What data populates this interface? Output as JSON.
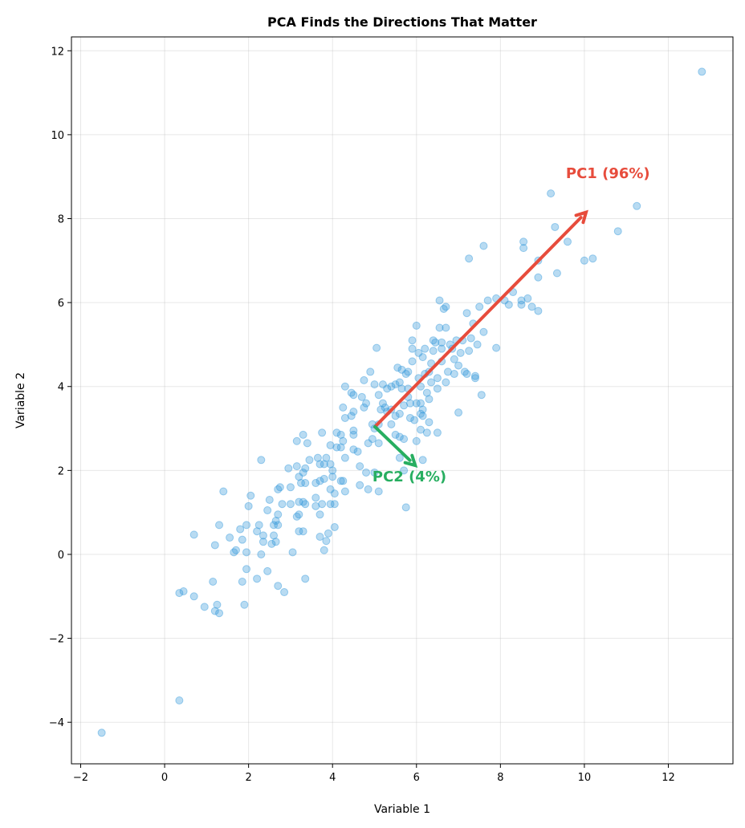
{
  "chart_data": {
    "type": "scatter",
    "title": "PCA Finds the Directions That Matter",
    "xlabel": "Variable 1",
    "ylabel": "Variable 2",
    "xlim": [
      -2.22,
      13.54
    ],
    "ylim": [
      -4.99,
      12.33
    ],
    "xticks": [
      -2,
      0,
      2,
      4,
      6,
      8,
      10,
      12
    ],
    "yticks": [
      -4,
      -2,
      0,
      2,
      4,
      6,
      8,
      10,
      12
    ],
    "grid": true,
    "colors": {
      "points": "#3498db",
      "pc1": "#e74c3c",
      "pc2": "#27ae60"
    },
    "points": [
      [
        -1.5,
        -4.25
      ],
      [
        0.35,
        -3.48
      ],
      [
        12.8,
        11.5
      ],
      [
        9.2,
        8.6
      ],
      [
        11.25,
        8.3
      ],
      [
        10.8,
        7.7
      ],
      [
        10.2,
        7.05
      ],
      [
        10,
        7.0
      ],
      [
        9.6,
        7.45
      ],
      [
        9.3,
        7.8
      ],
      [
        9.35,
        6.7
      ],
      [
        8.9,
        7.0
      ],
      [
        8.9,
        6.6
      ],
      [
        8.9,
        5.8
      ],
      [
        8.55,
        7.45
      ],
      [
        8.55,
        7.3
      ],
      [
        8.65,
        6.1
      ],
      [
        8.75,
        5.9
      ],
      [
        8.5,
        5.95
      ],
      [
        8.5,
        6.05
      ],
      [
        8.3,
        6.25
      ],
      [
        8.1,
        6.05
      ],
      [
        8.2,
        5.95
      ],
      [
        7.9,
        6.1
      ],
      [
        7.7,
        6.05
      ],
      [
        7.6,
        7.35
      ],
      [
        7.25,
        7.05
      ],
      [
        7.9,
        4.92
      ],
      [
        7.55,
        3.8
      ],
      [
        7.5,
        5.9
      ],
      [
        7.6,
        5.3
      ],
      [
        7.45,
        5.0
      ],
      [
        7.4,
        4.2
      ],
      [
        7.4,
        4.25
      ],
      [
        7.35,
        5.5
      ],
      [
        7.2,
        5.75
      ],
      [
        7.1,
        5.1
      ],
      [
        7.2,
        4.3
      ],
      [
        7.0,
        4.5
      ],
      [
        7.0,
        3.38
      ],
      [
        6.9,
        4.3
      ],
      [
        6.9,
        4.65
      ],
      [
        6.8,
        5.0
      ],
      [
        6.7,
        5.9
      ],
      [
        6.65,
        5.85
      ],
      [
        6.55,
        6.05
      ],
      [
        6.55,
        5.4
      ],
      [
        6.7,
        5.4
      ],
      [
        6.6,
        4.6
      ],
      [
        6.6,
        4.9
      ],
      [
        6.5,
        4.2
      ],
      [
        6.5,
        3.95
      ],
      [
        6.45,
        5.05
      ],
      [
        6.4,
        4.85
      ],
      [
        6.3,
        4.35
      ],
      [
        6.25,
        3.85
      ],
      [
        6.3,
        3.7
      ],
      [
        6.3,
        3.15
      ],
      [
        6.25,
        2.9
      ],
      [
        6.5,
        2.9
      ],
      [
        6.1,
        3.35
      ],
      [
        6.15,
        3.3
      ],
      [
        6.15,
        3.45
      ],
      [
        6.1,
        3.6
      ],
      [
        6.0,
        3.6
      ],
      [
        6.0,
        2.7
      ],
      [
        6.1,
        2.97
      ],
      [
        6.15,
        2.25
      ],
      [
        5.75,
        1.12
      ],
      [
        5.7,
        2.0
      ],
      [
        5.6,
        2.3
      ],
      [
        5.6,
        2.8
      ],
      [
        5.7,
        2.75
      ],
      [
        5.5,
        2.85
      ],
      [
        5.5,
        3.3
      ],
      [
        5.6,
        3.35
      ],
      [
        5.4,
        3.45
      ],
      [
        5.4,
        3.1
      ],
      [
        5.3,
        3.4
      ],
      [
        5.25,
        3.5
      ],
      [
        5.2,
        3.6
      ],
      [
        5.15,
        3.45
      ],
      [
        5.1,
        3.8
      ],
      [
        5.1,
        3.1
      ],
      [
        5.0,
        3.0
      ],
      [
        4.95,
        3.1
      ],
      [
        5.0,
        4.05
      ],
      [
        5.05,
        4.92
      ],
      [
        4.9,
        4.35
      ],
      [
        4.8,
        3.6
      ],
      [
        4.75,
        3.5
      ],
      [
        4.75,
        4.15
      ],
      [
        4.7,
        3.75
      ],
      [
        4.85,
        2.65
      ],
      [
        4.95,
        2.75
      ],
      [
        5.1,
        2.65
      ],
      [
        5.0,
        1.95
      ],
      [
        5.1,
        1.5
      ],
      [
        4.85,
        1.55
      ],
      [
        4.8,
        1.95
      ],
      [
        4.65,
        1.65
      ],
      [
        4.65,
        2.1
      ],
      [
        4.6,
        2.45
      ],
      [
        4.5,
        2.85
      ],
      [
        4.5,
        2.95
      ],
      [
        4.5,
        2.5
      ],
      [
        4.5,
        3.4
      ],
      [
        4.45,
        3.3
      ],
      [
        4.45,
        3.85
      ],
      [
        4.5,
        3.8
      ],
      [
        4.3,
        4.0
      ],
      [
        4.25,
        3.5
      ],
      [
        4.3,
        3.25
      ],
      [
        4.2,
        2.85
      ],
      [
        4.2,
        2.55
      ],
      [
        4.25,
        2.7
      ],
      [
        4.1,
        2.9
      ],
      [
        4.1,
        2.55
      ],
      [
        4.3,
        2.3
      ],
      [
        4.3,
        1.5
      ],
      [
        4.2,
        1.75
      ],
      [
        4.25,
        1.75
      ],
      [
        4.05,
        1.45
      ],
      [
        4.05,
        1.2
      ],
      [
        4.05,
        0.65
      ],
      [
        3.95,
        1.2
      ],
      [
        3.9,
        0.5
      ],
      [
        3.95,
        1.55
      ],
      [
        4.0,
        1.85
      ],
      [
        4.0,
        2.0
      ],
      [
        3.95,
        2.15
      ],
      [
        3.95,
        2.6
      ],
      [
        3.85,
        2.3
      ],
      [
        3.8,
        2.15
      ],
      [
        3.7,
        2.15
      ],
      [
        3.75,
        2.9
      ],
      [
        3.65,
        2.3
      ],
      [
        3.7,
        1.75
      ],
      [
        3.8,
        1.8
      ],
      [
        3.6,
        1.7
      ],
      [
        3.6,
        1.35
      ],
      [
        3.6,
        1.15
      ],
      [
        3.75,
        1.2
      ],
      [
        3.7,
        0.95
      ],
      [
        3.7,
        0.42
      ],
      [
        3.85,
        0.32
      ],
      [
        3.8,
        0.1
      ],
      [
        3.4,
        2.65
      ],
      [
        3.45,
        2.25
      ],
      [
        3.35,
        2.05
      ],
      [
        3.3,
        2.85
      ],
      [
        3.3,
        1.95
      ],
      [
        3.25,
        1.7
      ],
      [
        3.2,
        1.85
      ],
      [
        3.15,
        2.1
      ],
      [
        3.15,
        2.7
      ],
      [
        3.35,
        1.7
      ],
      [
        3.35,
        1.2
      ],
      [
        3.3,
        1.25
      ],
      [
        3.2,
        1.25
      ],
      [
        3.15,
        0.9
      ],
      [
        3.2,
        0.95
      ],
      [
        3.2,
        0.55
      ],
      [
        3.3,
        0.55
      ],
      [
        3.35,
        -0.58
      ],
      [
        3.05,
        0.05
      ],
      [
        3.0,
        1.2
      ],
      [
        3.0,
        1.6
      ],
      [
        2.95,
        2.05
      ],
      [
        2.8,
        1.2
      ],
      [
        2.75,
        1.6
      ],
      [
        2.7,
        1.55
      ],
      [
        2.7,
        0.95
      ],
      [
        2.65,
        0.8
      ],
      [
        2.7,
        0.7
      ],
      [
        2.6,
        0.45
      ],
      [
        2.6,
        0.7
      ],
      [
        2.65,
        0.3
      ],
      [
        2.55,
        0.25
      ],
      [
        2.5,
        1.3
      ],
      [
        2.45,
        1.05
      ],
      [
        2.45,
        -0.4
      ],
      [
        2.7,
        -0.75
      ],
      [
        2.85,
        -0.9
      ],
      [
        2.35,
        0.3
      ],
      [
        2.35,
        0.45
      ],
      [
        2.3,
        0.0
      ],
      [
        2.3,
        2.25
      ],
      [
        2.25,
        0.7
      ],
      [
        2.2,
        0.55
      ],
      [
        2.2,
        -0.58
      ],
      [
        2.05,
        1.4
      ],
      [
        2.0,
        1.15
      ],
      [
        1.95,
        0.7
      ],
      [
        1.95,
        0.05
      ],
      [
        1.95,
        -0.35
      ],
      [
        1.85,
        -0.65
      ],
      [
        1.9,
        -1.2
      ],
      [
        1.85,
        0.35
      ],
      [
        1.8,
        0.6
      ],
      [
        1.7,
        0.1
      ],
      [
        1.65,
        0.05
      ],
      [
        1.55,
        0.4
      ],
      [
        1.4,
        1.5
      ],
      [
        1.3,
        0.7
      ],
      [
        1.2,
        0.22
      ],
      [
        1.15,
        -0.65
      ],
      [
        1.25,
        -1.2
      ],
      [
        1.2,
        -1.35
      ],
      [
        1.3,
        -1.4
      ],
      [
        0.95,
        -1.25
      ],
      [
        0.7,
        0.47
      ],
      [
        0.7,
        -1.0
      ],
      [
        0.45,
        -0.88
      ],
      [
        0.35,
        -0.92
      ],
      [
        5.2,
        4.05
      ],
      [
        5.3,
        3.95
      ],
      [
        5.4,
        4.0
      ],
      [
        5.5,
        4.05
      ],
      [
        5.55,
        4.45
      ],
      [
        5.65,
        4.4
      ],
      [
        5.75,
        4.3
      ],
      [
        5.8,
        4.35
      ],
      [
        5.8,
        3.95
      ],
      [
        5.85,
        3.6
      ],
      [
        5.85,
        3.25
      ],
      [
        5.9,
        4.9
      ],
      [
        5.9,
        5.1
      ],
      [
        6.0,
        5.45
      ],
      [
        6.05,
        4.8
      ],
      [
        6.1,
        4.0
      ],
      [
        6.15,
        4.7
      ],
      [
        6.2,
        4.9
      ],
      [
        6.35,
        4.55
      ],
      [
        6.4,
        5.1
      ],
      [
        5.6,
        4.1
      ],
      [
        5.7,
        3.55
      ],
      [
        5.8,
        3.75
      ],
      [
        5.65,
        3.95
      ],
      [
        5.9,
        4.6
      ],
      [
        5.95,
        3.2
      ],
      [
        6.05,
        4.2
      ],
      [
        6.2,
        4.3
      ],
      [
        6.35,
        4.1
      ],
      [
        6.6,
        5.05
      ],
      [
        6.75,
        4.35
      ],
      [
        6.85,
        4.9
      ],
      [
        6.95,
        5.1
      ],
      [
        7.05,
        4.8
      ],
      [
        7.15,
        4.35
      ],
      [
        7.25,
        4.85
      ],
      [
        7.3,
        5.15
      ],
      [
        6.7,
        4.1
      ]
    ],
    "arrows": [
      {
        "name": "PC1",
        "label": "PC1 (96%)",
        "from": [
          5.01,
          3.04
        ],
        "to": [
          10.04,
          8.15
        ],
        "label_at": [
          9.56,
          9.08
        ],
        "color": "#e74c3c"
      },
      {
        "name": "PC2",
        "label": "PC2 (4%)",
        "from": [
          5.01,
          3.04
        ],
        "to": [
          5.97,
          2.12
        ],
        "label_at": [
          4.95,
          1.85
        ],
        "color": "#27ae60"
      }
    ]
  }
}
